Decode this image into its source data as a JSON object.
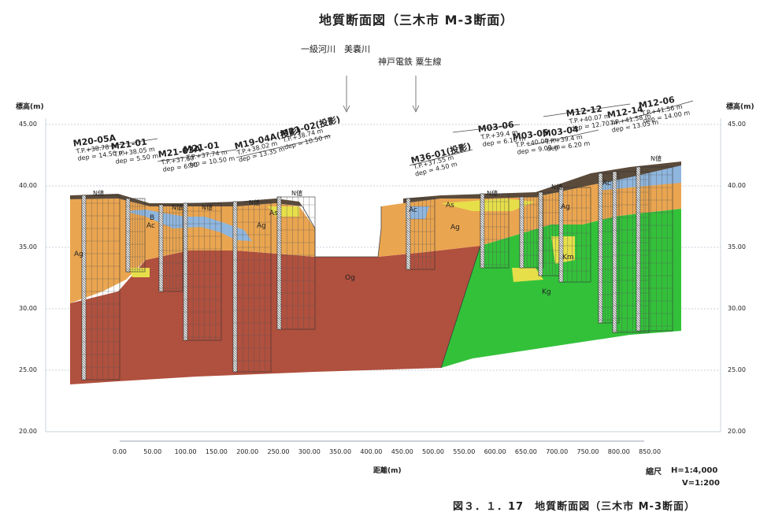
{
  "title": "地質断面図（三木市 M-3断面）",
  "annotations": {
    "river": "一級河川　美嚢川",
    "railway": "神戸電鉄 粟生線"
  },
  "axes": {
    "left_unit": "標高(m)",
    "right_unit": "標高(m)",
    "x_label": "距離(m)",
    "y_ticks": [
      "45.00",
      "40.00",
      "35.00",
      "30.00",
      "25.00",
      "20.00"
    ],
    "x_ticks": [
      "0.00",
      "50.00",
      "100.00",
      "150.00",
      "200.00",
      "250.00",
      "300.00",
      "350.00",
      "400.00",
      "450.00",
      "500.00",
      "550.00",
      "600.00",
      "650.00",
      "700.00",
      "750.00",
      "800.00",
      "850.00"
    ]
  },
  "scale": {
    "label": "縮尺",
    "horizontal": "H=1:4,000",
    "vertical": "V=1:200"
  },
  "caption": "図３．１．17　地質断面図（三木市 M-3断面）",
  "boreholes": [
    {
      "id": "M20-05A",
      "tp": "T.P.+38.78 m",
      "dep": "dep = 14.50 m"
    },
    {
      "id": "M21-01",
      "tp": "T.P.+38.05 m",
      "dep": "dep = 5.50 m"
    },
    {
      "id": "M21-03A",
      "tp": "T.P.+37.60",
      "dep": "dep = 6.50"
    },
    {
      "id": "M21-01",
      "tp": "T.P.+37.74 m",
      "dep": "dep = 10.50 m"
    },
    {
      "id": "M19-04A(投影)",
      "tp": "T.P.+38.02 m",
      "dep": "dep = 13.35 m"
    },
    {
      "id": "M21-02(投影)",
      "tp": "T.P.+38.74 m",
      "dep": "dep = 10.50 m"
    },
    {
      "id": "M36-01(投影)",
      "tp": "T.P.+37.55 m",
      "dep": "dep = 4.50 m"
    },
    {
      "id": "M03-06",
      "tp": "T.P.+39.4 m",
      "dep": "dep = 6.10 m"
    },
    {
      "id": "M03-05",
      "tp": "T.P.+40.00 m",
      "dep": "dep = 9.00 m"
    },
    {
      "id": "M03-04",
      "tp": "T.P.+39.4 m",
      "dep": "dep = 6.20 m"
    },
    {
      "id": "M12-12",
      "tp": "T.P.+40.07 m",
      "dep": "dep = 12.70 m"
    },
    {
      "id": "M12-14",
      "tp": "T.P.+41.58 m",
      "dep": "dep = 13.05 m"
    },
    {
      "id": "M12-06",
      "tp": "T.P.+41.56 m",
      "dep": "dep = 14.00 m"
    }
  ],
  "layers": {
    "ag": "Ag",
    "ac": "Ac",
    "as": "As",
    "og": "Og",
    "kg": "Kg",
    "km": "Km",
    "b": "B"
  },
  "n_value_label": "N値",
  "colors": {
    "og": "#b0503e",
    "ag": "#eaa550",
    "ac": "#8fb6de",
    "as": "#e6df4a",
    "kg": "#33c13a",
    "b": "#5a4a3a",
    "line": "#7a8a9a"
  }
}
